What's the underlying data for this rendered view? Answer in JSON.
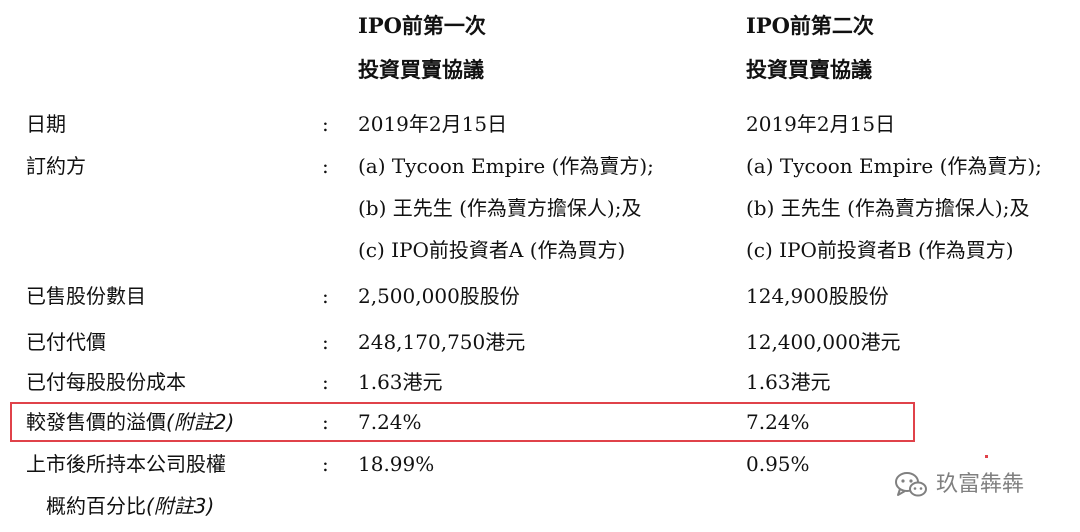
{
  "headers": {
    "col1": {
      "line1": "IPO前第一次",
      "line2": "投資買賣協議"
    },
    "col2": {
      "line1": "IPO前第二次",
      "line2": "投資買賣協議"
    }
  },
  "rows": [
    {
      "label": "日期",
      "colon": ":",
      "col1": [
        "2019年2月15日"
      ],
      "col2": [
        "2019年2月15日"
      ]
    },
    {
      "label": "訂約方",
      "colon": ":",
      "col1": [
        "(a) Tycoon Empire (作為賣方);",
        "(b) 王先生 (作為賣方擔保人);及",
        "(c) IPO前投資者A (作為買方)"
      ],
      "col2": [
        "(a) Tycoon Empire (作為賣方);",
        "(b) 王先生 (作為賣方擔保人);及",
        "(c) IPO前投資者B (作為買方)"
      ]
    },
    {
      "label": "已售股份數目",
      "colon": ":",
      "col1": [
        "2,500,000股股份"
      ],
      "col2": [
        "124,900股股份"
      ]
    },
    {
      "label": "已付代價",
      "colon": ":",
      "col1": [
        "248,170,750港元"
      ],
      "col2": [
        "12,400,000港元"
      ]
    },
    {
      "label": "已付每股股份成本",
      "colon": ":",
      "col1": [
        "1.63港元"
      ],
      "col2": [
        "1.63港元"
      ]
    },
    {
      "label": "較發售價的溢價",
      "label_note": "(附註2)",
      "colon": ":",
      "col1": [
        "7.24%"
      ],
      "col2": [
        "7.24%"
      ],
      "highlighted": true
    },
    {
      "label": "上市後所持本公司股權",
      "label_line2": "概約百分比",
      "label_note": "(附註3)",
      "colon": ":",
      "col1": [
        "18.99%"
      ],
      "col2": [
        "0.95%"
      ]
    }
  ],
  "watermark": {
    "text": "玖富犇犇",
    "icon": "wechat-icon"
  },
  "colors": {
    "highlight": "#e0424a",
    "text": "#111111"
  }
}
